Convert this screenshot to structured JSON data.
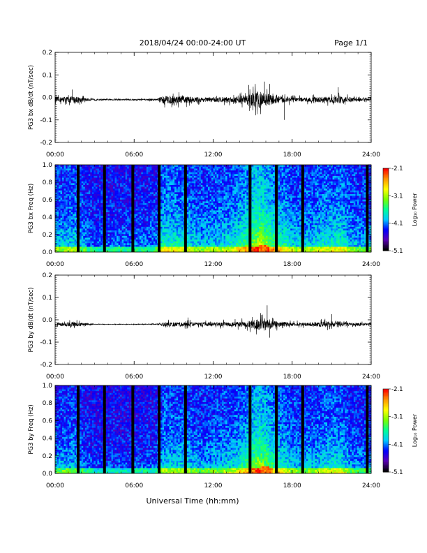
{
  "header": {
    "title": "2018/04/24  00:00-24:00 UT",
    "page": "Page 1/1"
  },
  "x_axis": {
    "ticks": [
      "00:00",
      "06:00",
      "12:00",
      "18:00",
      "24:00"
    ],
    "label": "Universal Time (hh:mm)"
  },
  "colorbar": {
    "title": "Log₁₀ Power",
    "ticks": [
      "-2.1",
      "-3.1",
      "-4.1",
      "-5.1"
    ],
    "colors": [
      "#000000",
      "#5a00b4",
      "#0000ff",
      "#00c8ff",
      "#00ff96",
      "#78ff00",
      "#ffff00",
      "#ff9600",
      "#ff0000"
    ]
  },
  "chart_data": [
    {
      "type": "line",
      "ylabel": "PG3 bx dB/dt (nT/sec)",
      "ylim": [
        -0.2,
        0.2
      ],
      "yticks": [
        "0.2",
        "0.1",
        "0.0",
        "-0.1",
        "-0.2"
      ],
      "x_range_hours": [
        0,
        24
      ],
      "baseline": -0.01,
      "activity_profile": {
        "hours": [
          0,
          1.5,
          2.5,
          3,
          6,
          7.7,
          8.2,
          10,
          11,
          12,
          13.5,
          14.5,
          15.5,
          16,
          16.6,
          17.5,
          18,
          19,
          20.3,
          21.2,
          21.7,
          22.4,
          24
        ],
        "amplitude": [
          0.01,
          0.015,
          0.006,
          0.003,
          0.003,
          0.004,
          0.018,
          0.015,
          0.01,
          0.011,
          0.013,
          0.02,
          0.04,
          0.028,
          0.02,
          0.013,
          0.01,
          0.009,
          0.013,
          0.014,
          0.017,
          0.009,
          0.006
        ]
      },
      "spikes": [
        {
          "x": 1.3,
          "y": 0.035
        },
        {
          "x": 15.9,
          "y": 0.07
        },
        {
          "x": 16.3,
          "y": 0.06
        },
        {
          "x": 17.4,
          "y": -0.1
        },
        {
          "x": 14.7,
          "y": 0.055
        },
        {
          "x": 21.5,
          "y": 0.045
        }
      ]
    },
    {
      "type": "heatmap",
      "ylabel": "PG3 bx Freq (Hz)",
      "ylim": [
        0.0,
        1.0
      ],
      "yticks": [
        "1.0",
        "0.8",
        "0.6",
        "0.4",
        "0.2",
        "0.0"
      ],
      "x_range_hours": [
        0,
        24
      ],
      "zlim": [
        -5.1,
        -2.1
      ],
      "gaps_hours": [
        1.75,
        3.75,
        5.9,
        7.9,
        9.9,
        14.8,
        16.8,
        18.8,
        23.7
      ],
      "hotspot_hours": [
        15.5,
        16.1
      ],
      "activity_profile": {
        "hours": [
          0,
          1.5,
          2.5,
          3,
          6,
          7.7,
          8.2,
          10,
          11,
          12,
          13.5,
          14.5,
          15.5,
          16,
          16.6,
          17.5,
          18,
          19,
          20.3,
          21.2,
          21.7,
          22.4,
          24
        ],
        "level": [
          0.35,
          0.4,
          0.25,
          0.2,
          0.22,
          0.25,
          0.5,
          0.45,
          0.35,
          0.38,
          0.45,
          0.6,
          0.85,
          0.75,
          0.6,
          0.5,
          0.4,
          0.38,
          0.45,
          0.48,
          0.5,
          0.35,
          0.3
        ]
      }
    },
    {
      "type": "line",
      "ylabel": "PG3 by dB/dt (nT/sec)",
      "ylim": [
        -0.2,
        0.2
      ],
      "yticks": [
        "0.2",
        "0.1",
        "0.0",
        "-0.1",
        "-0.2"
      ],
      "x_range_hours": [
        0,
        24
      ],
      "baseline": -0.02,
      "activity_profile": {
        "hours": [
          0,
          1.5,
          2.5,
          3,
          6,
          7.7,
          8.2,
          10,
          11,
          12,
          13.5,
          14.5,
          15.5,
          16,
          16.6,
          17.5,
          18,
          19,
          20.3,
          21.2,
          21.7,
          22.4,
          24
        ],
        "amplitude": [
          0.008,
          0.01,
          0.004,
          0.001,
          0.001,
          0.002,
          0.009,
          0.01,
          0.008,
          0.009,
          0.01,
          0.013,
          0.028,
          0.02,
          0.014,
          0.01,
          0.008,
          0.008,
          0.011,
          0.014,
          0.013,
          0.007,
          0.005
        ]
      },
      "spikes": [
        {
          "x": 10.1,
          "y": 0.01
        },
        {
          "x": 16.1,
          "y": 0.065
        },
        {
          "x": 16.3,
          "y": -0.08
        },
        {
          "x": 15.6,
          "y": 0.03
        },
        {
          "x": 21.0,
          "y": 0.025
        }
      ]
    },
    {
      "type": "heatmap",
      "ylabel": "PG3 by Freq (Hz)",
      "ylim": [
        0.0,
        1.0
      ],
      "yticks": [
        "1.0",
        "0.8",
        "0.6",
        "0.4",
        "0.2",
        "0.0"
      ],
      "x_range_hours": [
        0,
        24
      ],
      "zlim": [
        -5.1,
        -2.1
      ],
      "gaps_hours": [
        1.75,
        3.75,
        5.9,
        7.9,
        9.9,
        14.8,
        16.8,
        18.8,
        23.7
      ],
      "hotspot_hours": [
        15.6,
        16.2
      ],
      "activity_profile": {
        "hours": [
          0,
          1.5,
          2.5,
          3,
          6,
          7.7,
          8.2,
          10,
          11,
          12,
          13.5,
          14.5,
          15.5,
          16,
          16.6,
          17.5,
          18,
          19,
          20.3,
          21.2,
          21.7,
          22.4,
          24
        ],
        "level": [
          0.3,
          0.33,
          0.2,
          0.15,
          0.17,
          0.2,
          0.4,
          0.38,
          0.3,
          0.33,
          0.4,
          0.55,
          0.8,
          0.7,
          0.55,
          0.45,
          0.35,
          0.33,
          0.4,
          0.45,
          0.45,
          0.3,
          0.25
        ]
      }
    }
  ]
}
